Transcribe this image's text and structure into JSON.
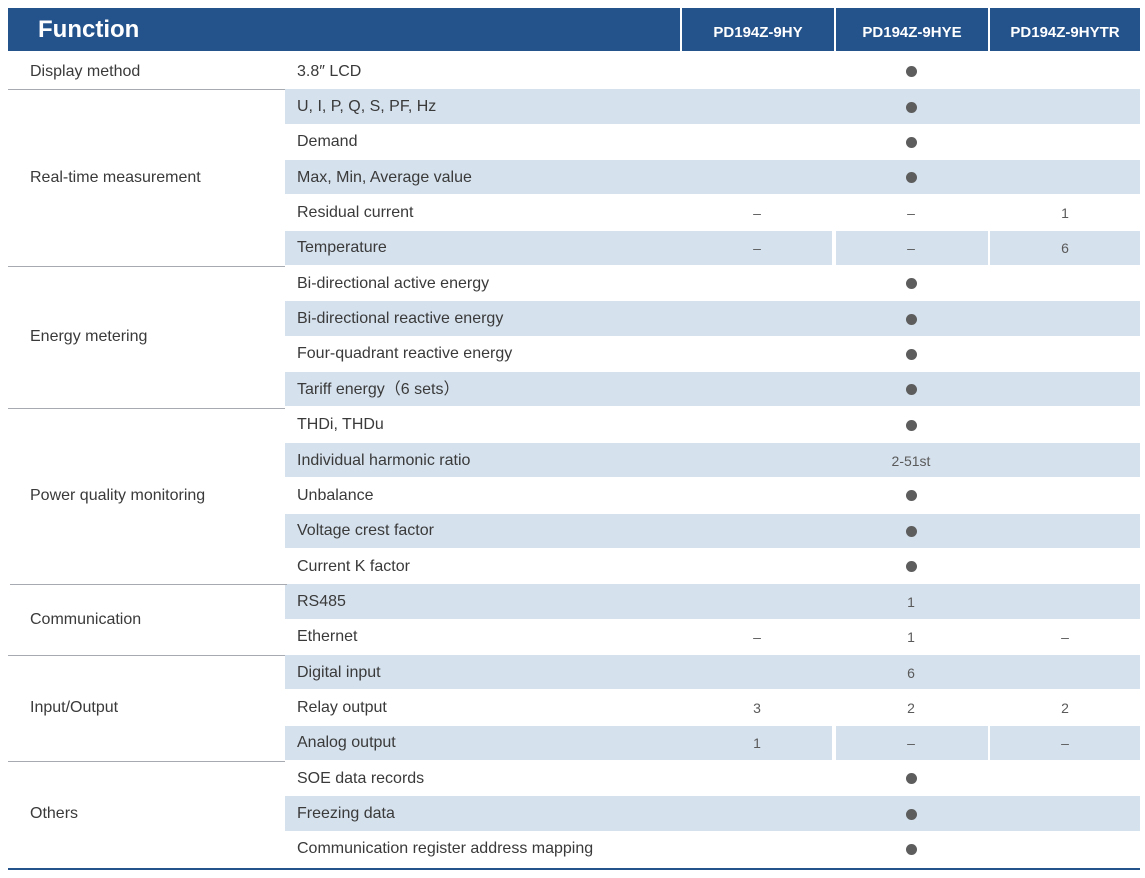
{
  "header": {
    "function_label": "Function",
    "models": [
      "PD194Z-9HY",
      "PD194Z-9HYE",
      "PD194Z-9HYTR"
    ]
  },
  "colors": {
    "header": "#24528b",
    "band": "#d5e1ed",
    "rule": "#a7aab0",
    "dot": "#5d5d5d"
  },
  "groups": [
    {
      "name": "Display method"
    },
    {
      "name": "Real-time measurement"
    },
    {
      "name": "Energy metering"
    },
    {
      "name": "Power quality monitoring"
    },
    {
      "name": "Communication"
    },
    {
      "name": "Input/Output"
    },
    {
      "name": "Others"
    }
  ],
  "rows": [
    {
      "feature": "3.8″ LCD",
      "value": "dot"
    },
    {
      "feature": "U, I, P, Q, S, PF, Hz",
      "value": "dot"
    },
    {
      "feature": "Demand",
      "value": "dot"
    },
    {
      "feature": "Max, Min, Average value",
      "value": "dot"
    },
    {
      "feature": "Residual current",
      "values": [
        "–",
        "–",
        "1"
      ]
    },
    {
      "feature": "Temperature",
      "values": [
        "–",
        "–",
        "6"
      ]
    },
    {
      "feature": "Bi-directional active energy",
      "value": "dot"
    },
    {
      "feature": "Bi-directional reactive energy",
      "value": "dot"
    },
    {
      "feature": "Four-quadrant reactive energy",
      "value": "dot"
    },
    {
      "feature": "Tariff energy（6 sets）",
      "value": "dot"
    },
    {
      "feature": "THDi, THDu",
      "value": "dot"
    },
    {
      "feature": "Individual harmonic ratio",
      "value": "2-51st"
    },
    {
      "feature": "Unbalance",
      "value": "dot"
    },
    {
      "feature": "Voltage crest factor",
      "value": "dot"
    },
    {
      "feature": "Current K factor",
      "value": "dot"
    },
    {
      "feature": "RS485",
      "value": "1"
    },
    {
      "feature": "Ethernet",
      "values": [
        "–",
        "1",
        "–"
      ]
    },
    {
      "feature": "Digital input",
      "value": "6"
    },
    {
      "feature": "Relay output",
      "values": [
        "3",
        "2",
        "2"
      ]
    },
    {
      "feature": "Analog output",
      "values": [
        "1",
        "–",
        "–"
      ]
    },
    {
      "feature": "SOE data records",
      "value": "dot"
    },
    {
      "feature": "Freezing data",
      "value": "dot"
    },
    {
      "feature": "Communication register address mapping",
      "value": "dot"
    }
  ]
}
